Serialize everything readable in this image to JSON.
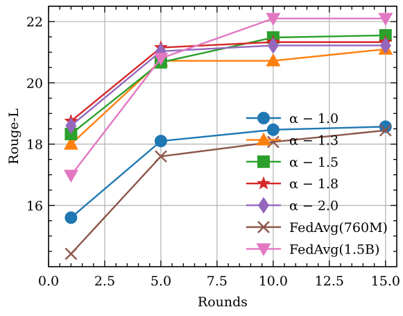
{
  "chart_data": {
    "type": "line",
    "xlabel": "Rounds",
    "ylabel": "Rouge-L",
    "xlim": [
      0,
      15.5
    ],
    "ylim": [
      14.0,
      22.5
    ],
    "xticks": [
      0.0,
      2.5,
      5.0,
      7.5,
      10.0,
      12.5,
      15.0
    ],
    "xtick_labels": [
      "0.0",
      "2.5",
      "5.0",
      "7.5",
      "10.0",
      "12.5",
      "15.0"
    ],
    "yticks": [
      16,
      18,
      20,
      22
    ],
    "ytick_labels": [
      "16",
      "18",
      "20",
      "22"
    ],
    "grid": true,
    "legend_position": "lower-right",
    "x": [
      1,
      5,
      10,
      15
    ],
    "series": [
      {
        "name": "α − 1.0",
        "values": [
          15.6,
          18.1,
          18.47,
          18.57
        ],
        "color": "#1f77b4",
        "marker": "circle"
      },
      {
        "name": "α − 1.3",
        "values": [
          18.0,
          20.72,
          20.72,
          21.1
        ],
        "color": "#ff7f0e",
        "marker": "triangle-up"
      },
      {
        "name": "α − 1.5",
        "values": [
          18.33,
          20.67,
          21.48,
          21.55
        ],
        "color": "#2ca02c",
        "marker": "square"
      },
      {
        "name": "α − 1.8",
        "values": [
          18.75,
          21.15,
          21.33,
          21.33
        ],
        "color": "#d62728",
        "marker": "star"
      },
      {
        "name": "α − 2.0",
        "values": [
          18.6,
          21.03,
          21.22,
          21.22
        ],
        "color": "#9467bd",
        "marker": "diamond"
      },
      {
        "name": "FedAvg(760M)",
        "values": [
          14.42,
          17.6,
          18.07,
          18.45
        ],
        "color": "#8c564b",
        "marker": "x"
      },
      {
        "name": "FedAvg(1.5B)",
        "values": [
          16.98,
          20.8,
          22.1,
          22.1
        ],
        "color": "#e377c2",
        "marker": "triangle-down"
      }
    ]
  }
}
